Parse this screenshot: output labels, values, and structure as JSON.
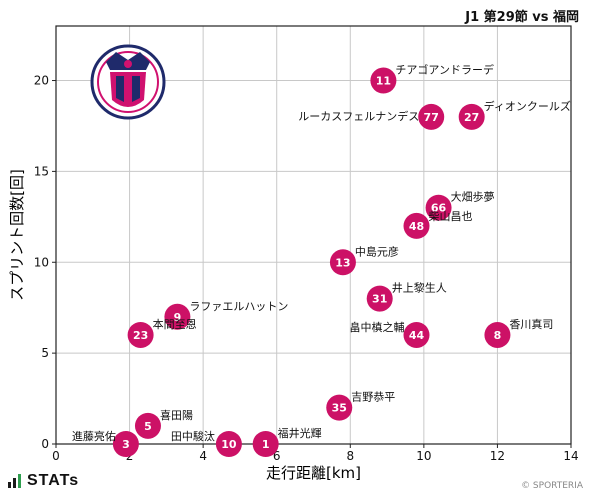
{
  "header": {
    "match_title": "J1 第29節 vs 福岡"
  },
  "crest": {
    "ring_text": "CEREZO OSAKA",
    "primary_color": "#d0116f",
    "secondary_color": "#1f2a6b"
  },
  "footer": {
    "brand": "STATs",
    "credit": "© SPORTERIA"
  },
  "colors": {
    "marker": "#cc1166",
    "grid": "#c8c8c8",
    "marker_text": "#ffffff"
  },
  "chart_data": {
    "type": "scatter",
    "xlabel": "走行距離[km]",
    "ylabel": "スプリント回数[回]",
    "xlim": [
      0,
      14
    ],
    "ylim": [
      0,
      23
    ],
    "xticks": [
      0,
      2,
      4,
      6,
      8,
      10,
      12,
      14
    ],
    "yticks": [
      0,
      5,
      10,
      15,
      20
    ],
    "grid": true,
    "points": [
      {
        "number": "11",
        "name": "チアゴアンドラーデ",
        "x": 8.9,
        "y": 20
      },
      {
        "number": "77",
        "name": "ルーカスフェルナンデス",
        "x": 10.2,
        "y": 18
      },
      {
        "number": "27",
        "name": "ディオンクールズ",
        "x": 11.3,
        "y": 18
      },
      {
        "number": "66",
        "name": "大畑歩夢",
        "x": 10.4,
        "y": 13
      },
      {
        "number": "48",
        "name": "柴山昌也",
        "x": 9.8,
        "y": 12
      },
      {
        "number": "13",
        "name": "中島元彦",
        "x": 7.8,
        "y": 10
      },
      {
        "number": "31",
        "name": "井上黎生人",
        "x": 8.8,
        "y": 8
      },
      {
        "number": "44",
        "name": "畠中槙之輔",
        "x": 9.8,
        "y": 6
      },
      {
        "number": "8",
        "name": "香川真司",
        "x": 12.0,
        "y": 6
      },
      {
        "number": "9",
        "name": "ラファエルハットン",
        "x": 3.3,
        "y": 7
      },
      {
        "number": "23",
        "name": "本間至恩",
        "x": 2.3,
        "y": 6
      },
      {
        "number": "35",
        "name": "吉野恭平",
        "x": 7.7,
        "y": 2
      },
      {
        "number": "5",
        "name": "喜田陽",
        "x": 2.5,
        "y": 1
      },
      {
        "number": "3",
        "name": "進藤亮佑",
        "x": 1.9,
        "y": 0
      },
      {
        "number": "10",
        "name": "田中駿汰",
        "x": 4.7,
        "y": 0
      },
      {
        "number": "1",
        "name": "福井光輝",
        "x": 5.7,
        "y": 0
      }
    ]
  }
}
